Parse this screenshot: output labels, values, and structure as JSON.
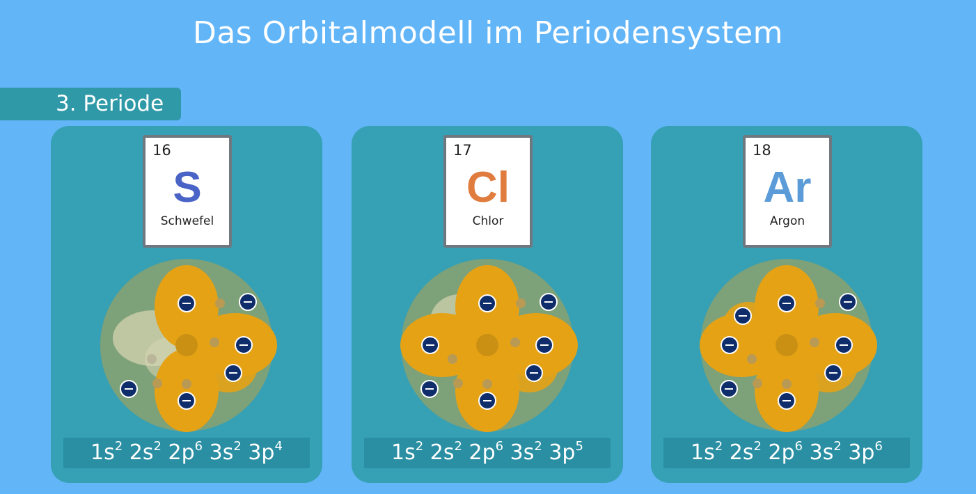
{
  "title": "Das Orbitalmodell im Periodensystem",
  "period_label": "3. Periode",
  "colors": {
    "background": "#62b5f7",
    "card": "#36a0b4",
    "orbital": "#e6a215",
    "electron": "#0e2d6a"
  },
  "elements": [
    {
      "number": "16",
      "symbol": "S",
      "name": "Schwefel",
      "symbol_color": "#4a63c6",
      "config": [
        {
          "base": "1s",
          "exp": "2"
        },
        {
          "base": "2s",
          "exp": "2"
        },
        {
          "base": "2p",
          "exp": "6"
        },
        {
          "base": "3s",
          "exp": "2"
        },
        {
          "base": "3p",
          "exp": "4"
        }
      ]
    },
    {
      "number": "17",
      "symbol": "Cl",
      "name": "Chlor",
      "symbol_color": "#e07c3e",
      "config": [
        {
          "base": "1s",
          "exp": "2"
        },
        {
          "base": "2s",
          "exp": "2"
        },
        {
          "base": "2p",
          "exp": "6"
        },
        {
          "base": "3s",
          "exp": "2"
        },
        {
          "base": "3p",
          "exp": "5"
        }
      ]
    },
    {
      "number": "18",
      "symbol": "Ar",
      "name": "Argon",
      "symbol_color": "#5b9cd8",
      "config": [
        {
          "base": "1s",
          "exp": "2"
        },
        {
          "base": "2s",
          "exp": "2"
        },
        {
          "base": "2p",
          "exp": "6"
        },
        {
          "base": "3s",
          "exp": "2"
        },
        {
          "base": "3p",
          "exp": "6"
        }
      ]
    }
  ]
}
